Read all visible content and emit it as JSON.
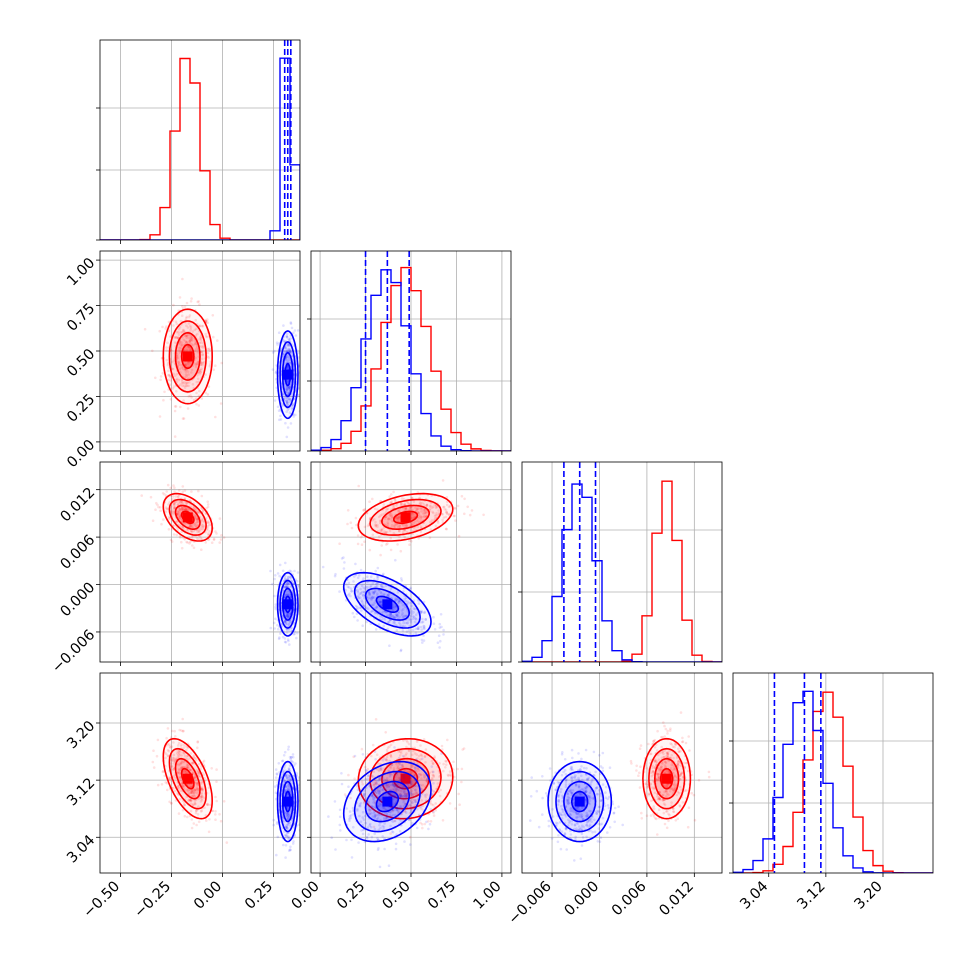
{
  "chart_data": {
    "type": "corner",
    "grid": true,
    "series": [
      {
        "color": "#ff0000",
        "means": [
          -0.17,
          0.47,
          0.0085,
          3.122
        ],
        "stds": [
          0.06,
          0.13,
          0.0015,
          0.028
        ],
        "correlations": [
          [
            0,
            1,
            0.0
          ],
          [
            0,
            2,
            -0.45
          ],
          [
            0,
            3,
            -0.55
          ],
          [
            1,
            2,
            0.35
          ],
          [
            1,
            3,
            0.05
          ],
          [
            2,
            3,
            0.0
          ]
        ]
      },
      {
        "color": "#0000ff",
        "means": [
          0.32,
          0.37,
          -0.0025,
          3.09
        ],
        "stds": [
          0.025,
          0.12,
          0.002,
          0.028
        ],
        "correlations": [
          [
            0,
            1,
            0.0
          ],
          [
            0,
            2,
            0.0
          ],
          [
            0,
            3,
            0.0
          ],
          [
            1,
            2,
            -0.55
          ],
          [
            1,
            3,
            0.3
          ],
          [
            2,
            3,
            0.0
          ]
        ],
        "quantiles": [
          [
            0.305,
            0.32,
            0.335
          ],
          [
            0.25,
            0.37,
            0.49
          ],
          [
            -0.0045,
            -0.0025,
            -0.0005
          ],
          [
            3.048,
            3.09,
            3.113
          ]
        ]
      }
    ],
    "params": [
      {
        "range": [
          -0.6,
          0.38
        ],
        "ticks": [
          -0.5,
          -0.25,
          0.0,
          0.25
        ],
        "tick_labels": [
          "−0.50",
          "−0.25",
          "0.00",
          "0.25"
        ]
      },
      {
        "range": [
          -0.05,
          1.05
        ],
        "ticks": [
          0.0,
          0.25,
          0.5,
          0.75,
          1.0
        ],
        "tick_labels": [
          "0.00",
          "0.25",
          "0.50",
          "0.75",
          "1.00"
        ]
      },
      {
        "range": [
          -0.0098,
          0.0155
        ],
        "ticks": [
          -0.006,
          0.0,
          0.006,
          0.012
        ],
        "tick_labels": [
          "−0.006",
          "0.000",
          "0.006",
          "0.012"
        ]
      },
      {
        "range": [
          2.99,
          3.27
        ],
        "ticks": [
          3.04,
          3.12,
          3.2
        ],
        "tick_labels": [
          "3.04",
          "3.12",
          "3.20"
        ]
      }
    ]
  }
}
